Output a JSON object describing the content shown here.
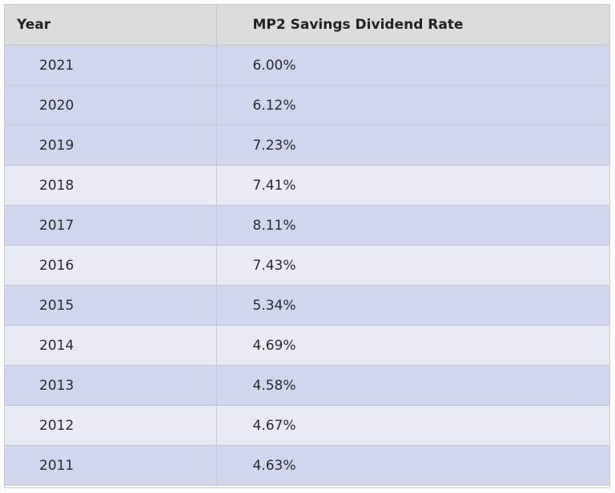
{
  "chart_data": {
    "type": "table",
    "columns": [
      "Year",
      "MP2 Savings Dividend Rate"
    ],
    "rows": [
      {
        "year": "2021",
        "rate": "6.00%",
        "shade": "dark"
      },
      {
        "year": "2020",
        "rate": "6.12%",
        "shade": "dark"
      },
      {
        "year": "2019",
        "rate": "7.23%",
        "shade": "dark"
      },
      {
        "year": "2018",
        "rate": "7.41%",
        "shade": "light"
      },
      {
        "year": "2017",
        "rate": "8.11%",
        "shade": "dark"
      },
      {
        "year": "2016",
        "rate": "7.43%",
        "shade": "light"
      },
      {
        "year": "2015",
        "rate": "5.34%",
        "shade": "dark"
      },
      {
        "year": "2014",
        "rate": "4.69%",
        "shade": "light"
      },
      {
        "year": "2013",
        "rate": "4.58%",
        "shade": "dark"
      },
      {
        "year": "2012",
        "rate": "4.67%",
        "shade": "light"
      },
      {
        "year": "2011",
        "rate": "4.63%",
        "shade": "dark"
      }
    ]
  },
  "colors": {
    "header_bg": "#dcdcdc",
    "row_dark": "#cfd6ee",
    "row_light": "#e8ebf5"
  }
}
